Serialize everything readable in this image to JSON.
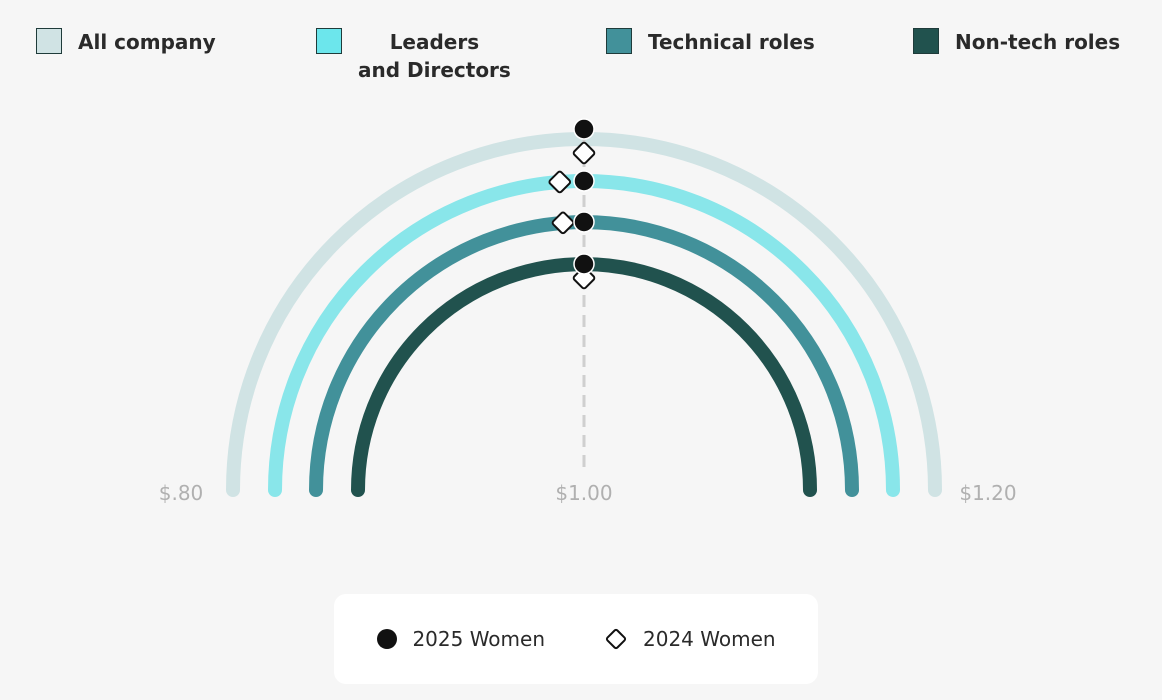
{
  "legend": [
    {
      "label_lines": [
        "All company"
      ],
      "color": "#d0e3e4"
    },
    {
      "label_lines": [
        "Leaders",
        "and Directors"
      ],
      "color": "#6ce6ec"
    },
    {
      "label_lines": [
        "Technical roles"
      ],
      "color": "#42919a"
    },
    {
      "label_lines": [
        "Non-tech roles"
      ],
      "color": "#21524e"
    }
  ],
  "bottom_legend": {
    "women_2025": "2025 Women",
    "women_2024": "2024 Women"
  },
  "chart_data": {
    "type": "radial-arc",
    "axis": {
      "min": 0.8,
      "max": 1.2,
      "center": 1.0,
      "labels": [
        "$.80",
        "$1.00",
        "$1.20"
      ]
    },
    "reference_line": 1.0,
    "series": [
      {
        "name": "All company",
        "color": "#d0e3e4",
        "women_2025": 1.0,
        "women_2024": 1.0
      },
      {
        "name": "Leaders and Directors",
        "color": "#89e6ea",
        "women_2025": 1.0,
        "women_2024": 0.99
      },
      {
        "name": "Technical roles",
        "color": "#42919a",
        "women_2025": 1.0,
        "women_2024": 0.99
      },
      {
        "name": "Non-tech roles",
        "color": "#21524e",
        "women_2025": 1.0,
        "women_2024": 1.0
      }
    ]
  }
}
